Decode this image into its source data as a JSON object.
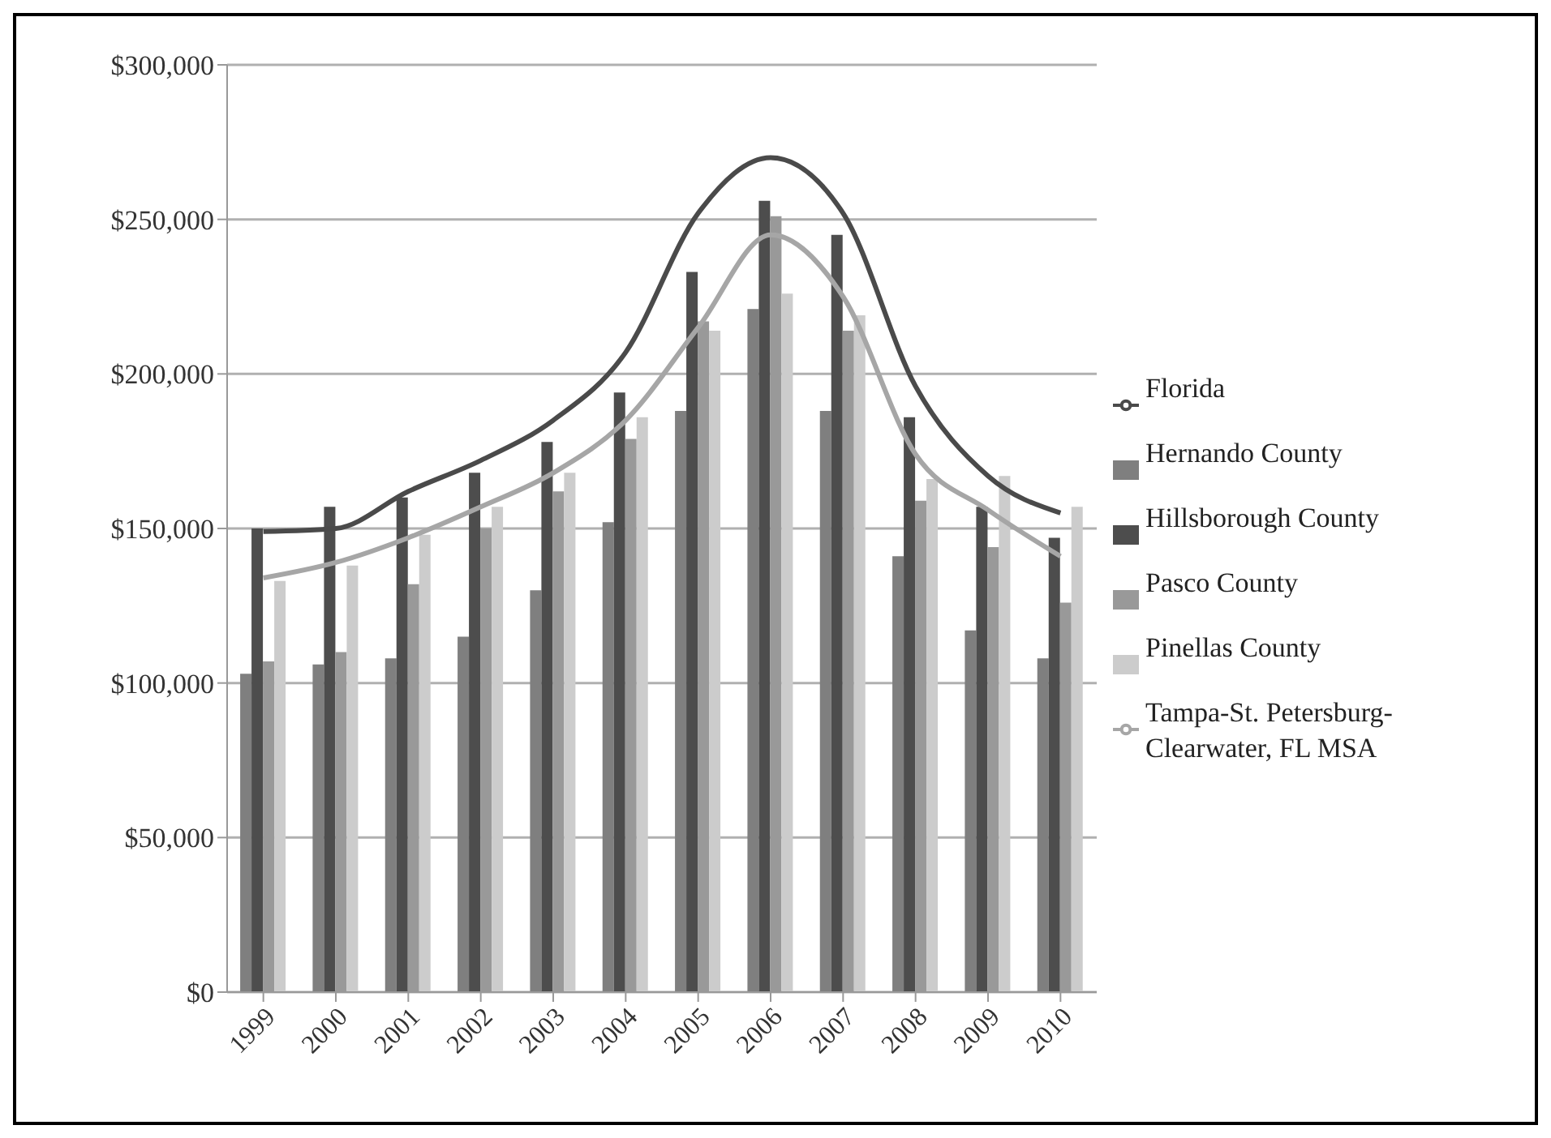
{
  "chart_data": {
    "type": "bar",
    "categories": [
      "1999",
      "2000",
      "2001",
      "2002",
      "2003",
      "2004",
      "2005",
      "2006",
      "2007",
      "2008",
      "2009",
      "2010"
    ],
    "series": [
      {
        "name": "Hernando County",
        "color": "#7f7f7f",
        "values": [
          103000,
          106000,
          108000,
          115000,
          130000,
          152000,
          188000,
          221000,
          188000,
          141000,
          117000,
          108000
        ]
      },
      {
        "name": "Hillsborough County",
        "color": "#4d4d4d",
        "values": [
          150000,
          157000,
          160000,
          168000,
          178000,
          194000,
          233000,
          256000,
          245000,
          186000,
          157000,
          147000
        ]
      },
      {
        "name": "Pasco County",
        "color": "#999999",
        "values": [
          107000,
          110000,
          132000,
          150000,
          162000,
          179000,
          217000,
          251000,
          214000,
          159000,
          144000,
          126000
        ]
      },
      {
        "name": "Pinellas County",
        "color": "#cccccc",
        "values": [
          133000,
          138000,
          148000,
          157000,
          168000,
          186000,
          214000,
          226000,
          219000,
          166000,
          167000,
          157000
        ]
      },
      {
        "name": "Florida",
        "type": "line",
        "color": "#4a4a4a",
        "values": [
          149000,
          150000,
          162000,
          172000,
          185000,
          207000,
          252000,
          270000,
          252000,
          196000,
          167000,
          155000
        ]
      },
      {
        "name": "Tampa-St. Petersburg-Clearwater, FL MSA",
        "type": "line",
        "color": "#a6a6a6",
        "values": [
          134000,
          139000,
          147000,
          157000,
          168000,
          185000,
          215000,
          245000,
          225000,
          174000,
          156000,
          141000
        ]
      }
    ],
    "ylim": [
      0,
      300000
    ],
    "yticks": [
      {
        "value": 0,
        "label": "$0"
      },
      {
        "value": 50000,
        "label": "$50,000"
      },
      {
        "value": 100000,
        "label": "$100,000"
      },
      {
        "value": 150000,
        "label": "$150,000"
      },
      {
        "value": 200000,
        "label": "$200,000"
      },
      {
        "value": 250000,
        "label": "$250,000"
      },
      {
        "value": 300000,
        "label": "$300,000"
      }
    ],
    "grid": "y",
    "legend": "right",
    "marker": "none",
    "line_style": "solid"
  }
}
